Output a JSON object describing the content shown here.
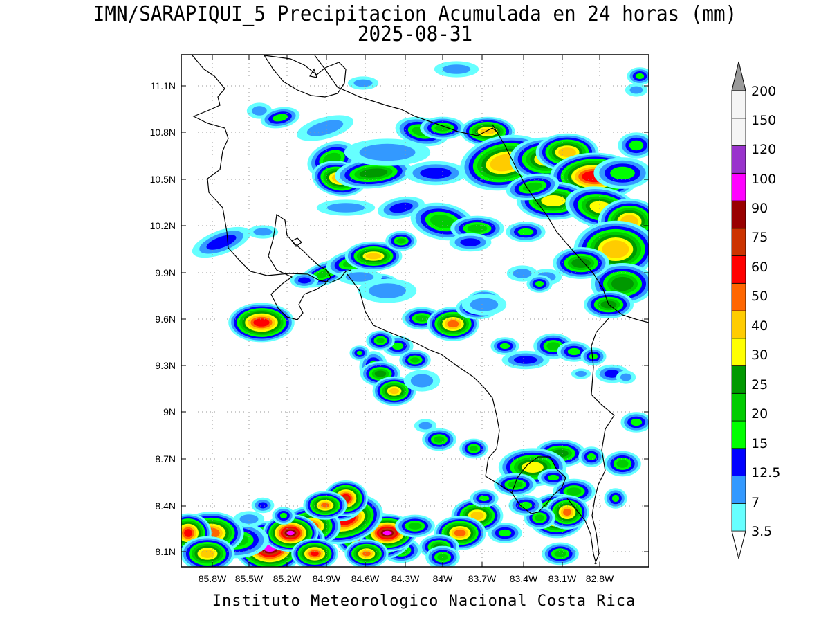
{
  "title": {
    "line1": "IMN/SARAPIQUI_5 Precipitacion Acumulada en 24 horas (mm)",
    "line2": "2025-08-31"
  },
  "footer": "Instituto Meteorologico Nacional Costa Rica",
  "axes": {
    "lon_ticks": [
      "85.8W",
      "85.5W",
      "85.2W",
      "84.9W",
      "84.6W",
      "84.3W",
      "84W",
      "83.7W",
      "83.4W",
      "83.1W",
      "82.8W"
    ],
    "lat_ticks": [
      "11.1N",
      "10.8N",
      "10.5N",
      "10.2N",
      "9.9N",
      "9.6N",
      "9.3N",
      "9N",
      "8.7N",
      "8.4N",
      "8.1N"
    ],
    "lon_range": [
      -86.0,
      -82.45
    ],
    "lat_range": [
      8.0,
      11.3
    ]
  },
  "colorbar": {
    "levels": [
      {
        "label": "3.5",
        "color": "#66ffff"
      },
      {
        "label": "7",
        "color": "#3399ff"
      },
      {
        "label": "12.5",
        "color": "#0000ff"
      },
      {
        "label": "15",
        "color": "#00ff00"
      },
      {
        "label": "20",
        "color": "#00cc00"
      },
      {
        "label": "25",
        "color": "#009900"
      },
      {
        "label": "30",
        "color": "#ffff00"
      },
      {
        "label": "40",
        "color": "#ffcc00"
      },
      {
        "label": "50",
        "color": "#ff6600"
      },
      {
        "label": "60",
        "color": "#ff0000"
      },
      {
        "label": "75",
        "color": "#cc3300"
      },
      {
        "label": "90",
        "color": "#990000"
      },
      {
        "label": "100",
        "color": "#ff00ff"
      },
      {
        "label": "120",
        "color": "#9933cc"
      },
      {
        "label": "150",
        "color": "#f5f5f5"
      },
      {
        "label": "200",
        "color": "#999999"
      }
    ]
  }
}
